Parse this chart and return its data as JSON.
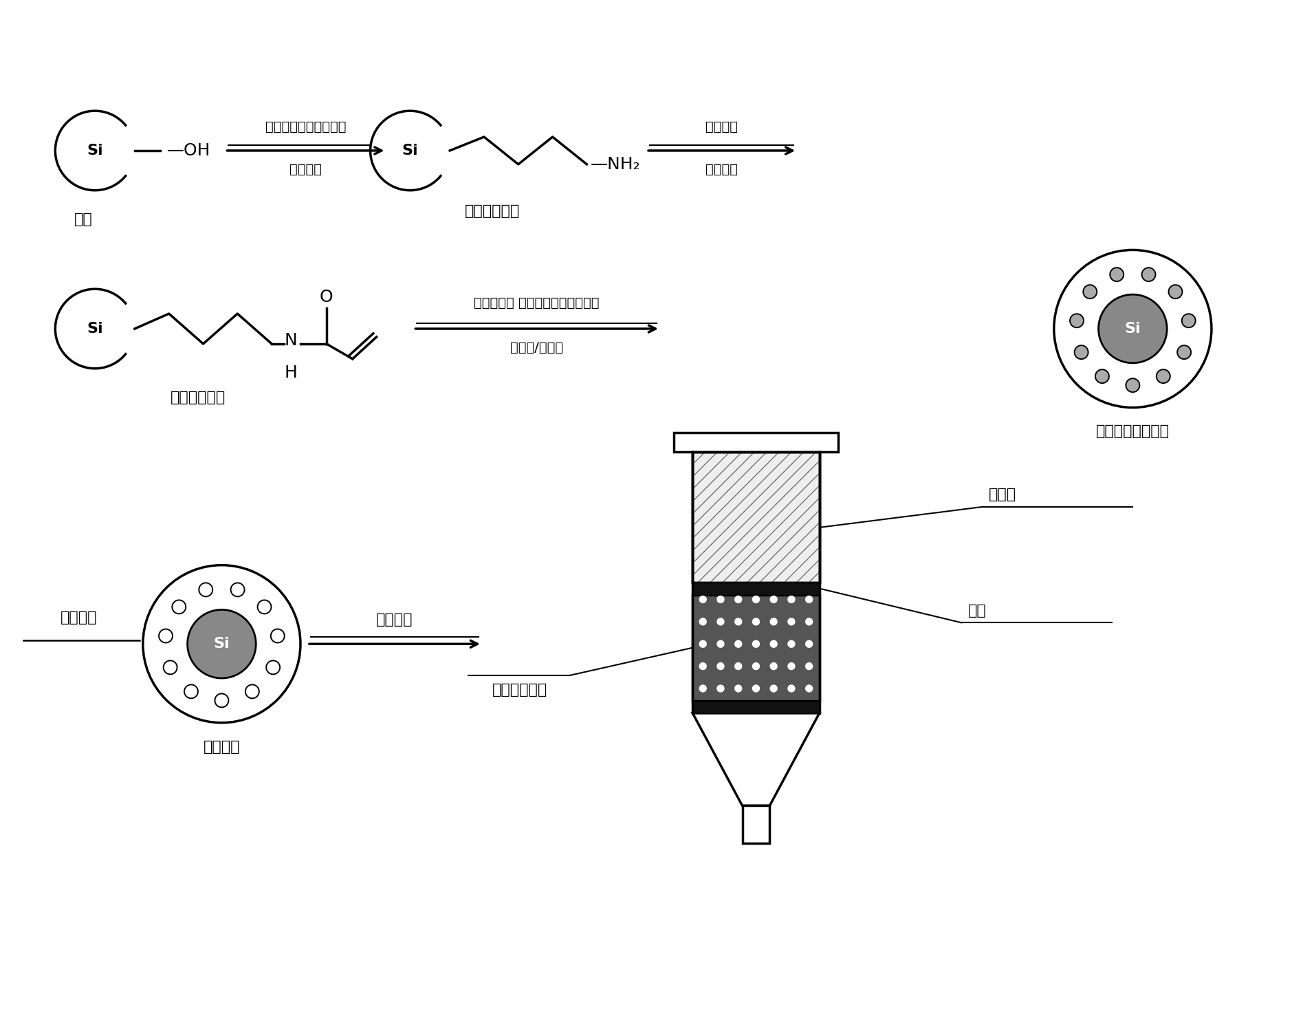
{
  "bg_color": "#ffffff",
  "line_color": "#000000",
  "line_width": 2.5,
  "font_size_main": 18,
  "font_size_small": 16,
  "font_size_reagent": 14,
  "labels": {
    "silica": "硅胶",
    "amino_silica": "氨基改性硅胶",
    "amide_silica": "酰基改性硅胶",
    "reagent1_top": "乙二醇二甲基丙烯酸酯",
    "reagent1_bot": "无水甲苯",
    "reagent2_top": "丙烯酰氯",
    "reagent2_bot": "无水甲苯",
    "reagent3_top": "甲基丙烯酸 乙二醇二甲基丙烯酸酯",
    "reagent3_bot": "吡虫啉/啶虫脒",
    "mip_unwashed": "分子印迹未洗模板",
    "wash_template": "洗去模板",
    "wet_pack": "湿法装柱",
    "mip": "分子印迹",
    "mip_filler": "分子印迹填料",
    "process_liquid": "处理液",
    "sieve": "筛板"
  }
}
